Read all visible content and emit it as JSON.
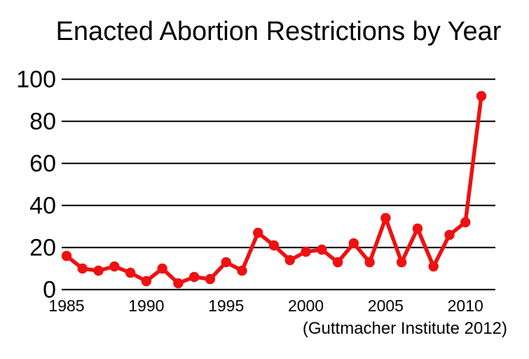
{
  "title": "Enacted Abortion Restrictions by Year",
  "attribution": "(Guttmacher Institute 2012)",
  "colors": {
    "line": "#ee1111",
    "grid": "#1a1a1a",
    "text": "#000000",
    "background": "#ffffff"
  },
  "chart_data": {
    "type": "line",
    "title": "Enacted Abortion Restrictions by Year",
    "x": [
      1985,
      1986,
      1987,
      1988,
      1989,
      1990,
      1991,
      1992,
      1993,
      1994,
      1995,
      1996,
      1997,
      1998,
      1999,
      2000,
      2001,
      2002,
      2003,
      2004,
      2005,
      2006,
      2007,
      2008,
      2009,
      2010,
      2011
    ],
    "values": [
      16,
      10,
      9,
      11,
      8,
      4,
      10,
      3,
      6,
      5,
      13,
      9,
      27,
      21,
      14,
      18,
      19,
      13,
      22,
      13,
      34,
      13,
      29,
      11,
      26,
      32,
      92
    ],
    "series_name": "Enacted abortion restrictions",
    "xticks": [
      1985,
      1990,
      1995,
      2000,
      2005,
      2010
    ],
    "yticks": [
      0,
      20,
      40,
      60,
      80,
      100
    ],
    "xlim": [
      1985,
      2011
    ],
    "ylim": [
      0,
      100
    ],
    "xlabel": "",
    "ylabel": "",
    "grid": "horizontal",
    "legend": "none",
    "marker": "circle",
    "annotation": "(Guttmacher Institute 2012)"
  }
}
